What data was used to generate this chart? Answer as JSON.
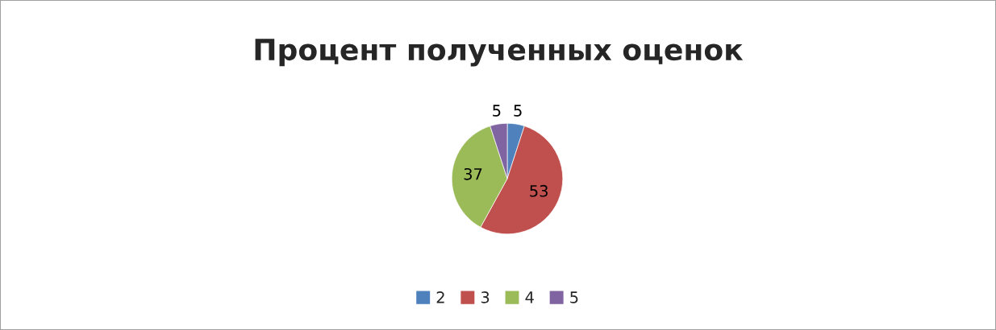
{
  "chart_data": {
    "type": "pie",
    "title": "Процент полученных оценок",
    "categories": [
      "2",
      "3",
      "4",
      "5"
    ],
    "values": [
      5,
      53,
      37,
      5
    ],
    "colors": [
      "#4f81bd",
      "#c0504d",
      "#9bbb59",
      "#8064a2"
    ],
    "data_labels": true,
    "legend": "bottom"
  }
}
